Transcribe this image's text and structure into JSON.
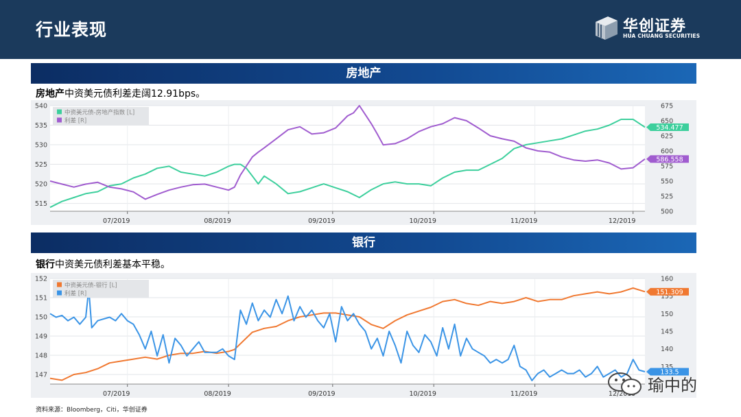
{
  "header": {
    "title": "行业表现"
  },
  "logo": {
    "name": "华创证券",
    "sub": "HUA CHUANG SECURITIES"
  },
  "sections": [
    {
      "band": "房地产",
      "caption_bold": "房地产",
      "caption_rest": "中资美元债利差走阔12.91bps。"
    },
    {
      "band": "银行",
      "caption_bold": "银行",
      "caption_rest": "中资美元债利差基本平稳。"
    }
  ],
  "source": "资料来源：Bloomberg，Citi，华创证券",
  "watermark": "瑜中的",
  "colors": {
    "re_index": "#3ccf9c",
    "re_spread": "#a05ccf",
    "bank_index": "#f07830",
    "bank_spread": "#3a94e6"
  },
  "chart_data": [
    {
      "type": "line",
      "x_ticks": [
        "07/2019",
        "08/2019",
        "09/2019",
        "10/2019",
        "11/2019",
        "12/2019"
      ],
      "x_range": [
        0,
        100
      ],
      "x_tick_pos": [
        13,
        30,
        47.5,
        64.5,
        81.5,
        98
      ],
      "ylim_left": [
        513,
        540
      ],
      "yticks_left": [
        515,
        520,
        525,
        530,
        535,
        540
      ],
      "ylim_right": [
        500,
        675
      ],
      "yticks_right": [
        500,
        525,
        550,
        575,
        600,
        625,
        650,
        675
      ],
      "series": [
        {
          "name": "中资美元债-房地产指数 [L]",
          "axis": "left",
          "end_label": "534.477",
          "x": [
            0,
            2,
            4,
            6,
            8,
            10,
            12,
            14,
            16,
            18,
            20,
            22,
            24,
            26,
            28,
            30,
            31,
            32,
            33,
            34,
            35,
            36,
            38,
            40,
            42,
            44,
            46,
            48,
            50,
            52,
            54,
            56,
            58,
            60,
            62,
            64,
            66,
            68,
            70,
            72,
            74,
            76,
            78,
            80,
            82,
            84,
            86,
            88,
            90,
            92,
            94,
            96,
            98,
            99,
            100
          ],
          "values": [
            514,
            515.5,
            516.5,
            517.5,
            518,
            519.5,
            520,
            521.5,
            522.5,
            524,
            524.5,
            523,
            522.5,
            522,
            523,
            524.5,
            525,
            525,
            524,
            522,
            520,
            522,
            520,
            517.5,
            518,
            519,
            520,
            519,
            518,
            516.5,
            518.5,
            520,
            520.5,
            520,
            520,
            519.5,
            521.5,
            523,
            523.5,
            523.5,
            525,
            526.5,
            529,
            530,
            530.5,
            531,
            531.5,
            532.5,
            533.5,
            534,
            535,
            536.5,
            536.5,
            535.5,
            534.477
          ]
        },
        {
          "name": "利差 [R]",
          "axis": "right",
          "end_label": "586.558",
          "x": [
            0,
            2,
            4,
            6,
            8,
            10,
            12,
            14,
            16,
            18,
            20,
            22,
            24,
            26,
            28,
            30,
            31,
            32,
            33,
            34,
            35,
            36,
            38,
            40,
            42,
            44,
            46,
            48,
            50,
            51,
            52,
            53,
            54,
            55,
            56,
            58,
            60,
            62,
            64,
            66,
            68,
            70,
            72,
            74,
            76,
            78,
            80,
            82,
            84,
            86,
            88,
            90,
            92,
            94,
            96,
            98,
            100
          ],
          "values": [
            550,
            545,
            540,
            545,
            548,
            540,
            537,
            532,
            520,
            528,
            535,
            540,
            544,
            545,
            540,
            535,
            540,
            560,
            575,
            590,
            598,
            605,
            620,
            635,
            640,
            628,
            630,
            638,
            658,
            663,
            675,
            660,
            645,
            628,
            610,
            612,
            620,
            632,
            640,
            645,
            655,
            650,
            638,
            625,
            620,
            616,
            605,
            600,
            598,
            590,
            585,
            583,
            585,
            580,
            570,
            572,
            586.558
          ]
        }
      ]
    },
    {
      "type": "line",
      "x_ticks": [
        "07/2019",
        "08/2019",
        "09/2019",
        "10/2019",
        "11/2019",
        "12/2019"
      ],
      "x_range": [
        0,
        100
      ],
      "x_tick_pos": [
        13,
        30,
        47.5,
        64.5,
        81.5,
        98
      ],
      "ylim_left": [
        146.5,
        152
      ],
      "yticks_left": [
        147,
        148,
        149,
        150,
        151,
        152
      ],
      "ylim_right": [
        130,
        160
      ],
      "yticks_right": [
        135,
        140,
        145,
        150,
        155,
        160
      ],
      "series": [
        {
          "name": "中资美元债-银行 [L]",
          "axis": "left",
          "end_label": "151.309",
          "x": [
            0,
            2,
            4,
            6,
            8,
            10,
            12,
            14,
            16,
            18,
            20,
            22,
            24,
            26,
            28,
            30,
            31,
            32,
            34,
            36,
            38,
            40,
            42,
            44,
            46,
            48,
            50,
            52,
            54,
            56,
            58,
            60,
            62,
            64,
            66,
            68,
            70,
            72,
            74,
            76,
            78,
            80,
            82,
            84,
            86,
            88,
            90,
            92,
            94,
            96,
            98,
            100
          ],
          "values": [
            146.8,
            146.7,
            147,
            147.1,
            147.3,
            147.6,
            147.7,
            147.8,
            147.9,
            147.8,
            148,
            148.1,
            148.1,
            148.2,
            148.1,
            148.2,
            148.3,
            148.6,
            149.2,
            149.4,
            149.5,
            149.8,
            150,
            150.1,
            150.2,
            150.2,
            150.1,
            150,
            149.6,
            149.4,
            149.8,
            150.1,
            150.3,
            150.5,
            150.8,
            150.9,
            150.7,
            150.6,
            150.8,
            150.7,
            150.8,
            151,
            150.8,
            150.9,
            150.9,
            151.1,
            151.2,
            151.3,
            151.2,
            151.3,
            151.5,
            151.309
          ]
        },
        {
          "name": "利差 [R]",
          "axis": "right",
          "end_label": "133.5",
          "x": [
            0,
            1,
            2,
            3,
            4,
            5,
            6,
            6.5,
            7,
            8,
            10,
            11,
            12,
            13,
            14,
            15,
            16,
            17,
            18,
            19,
            20,
            21,
            22,
            23,
            24,
            25,
            26,
            28,
            29,
            30,
            31,
            32,
            33,
            34,
            35,
            36,
            37,
            38,
            39,
            40,
            41,
            42,
            43,
            44,
            45,
            46,
            47,
            48,
            49,
            50,
            51,
            52,
            53,
            54,
            55,
            56,
            57,
            58,
            59,
            60,
            61,
            62,
            63,
            64,
            65,
            66,
            67,
            68,
            69,
            70,
            71,
            72,
            73,
            74,
            75,
            76,
            77,
            78,
            79,
            80,
            81,
            82,
            83,
            84,
            85,
            86,
            87,
            88,
            89,
            90,
            91,
            92,
            93,
            94,
            95,
            96,
            97,
            98,
            99,
            100
          ],
          "values": [
            150,
            149,
            149.5,
            148,
            149,
            147,
            149,
            157,
            146,
            148,
            149,
            148,
            150,
            148,
            147,
            144,
            140,
            145,
            138,
            144,
            136,
            143,
            141,
            138,
            140,
            142,
            139,
            139,
            140,
            138,
            137,
            151,
            147,
            153,
            148,
            151,
            149,
            154,
            150,
            155,
            148,
            152,
            149,
            151,
            148,
            146,
            150,
            142,
            152,
            148,
            150,
            147,
            145,
            140,
            143,
            138,
            145,
            141,
            136,
            145,
            141,
            139,
            144,
            142,
            138,
            146,
            140,
            147,
            138,
            143,
            140,
            139,
            138,
            136,
            137,
            136,
            137,
            141,
            135,
            134,
            131,
            133,
            134,
            132,
            133,
            134,
            133,
            133,
            134,
            132,
            133,
            135,
            132,
            133,
            134,
            132,
            133,
            137,
            134,
            133.5
          ]
        }
      ]
    }
  ]
}
